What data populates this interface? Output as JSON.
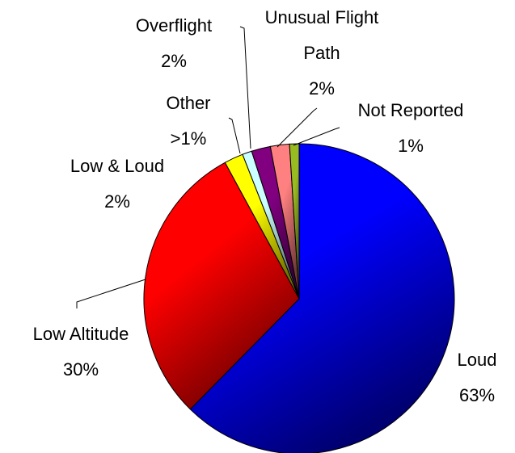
{
  "chart_data": {
    "type": "pie",
    "categories": [
      "Loud",
      "Low Altitude",
      "Low & Loud",
      "Other",
      "Overflight",
      "Unusual Flight Path",
      "Not Reported"
    ],
    "values": [
      63,
      30,
      2,
      1,
      2,
      2,
      1
    ],
    "value_labels": [
      "63%",
      "30%",
      "2%",
      ">1%",
      "2%",
      "2%",
      "1%"
    ],
    "colors": [
      "#0000ff",
      "#ff0000",
      "#ffff00",
      "#ccffff",
      "#800080",
      "#ff8080",
      "#99bb22"
    ]
  }
}
